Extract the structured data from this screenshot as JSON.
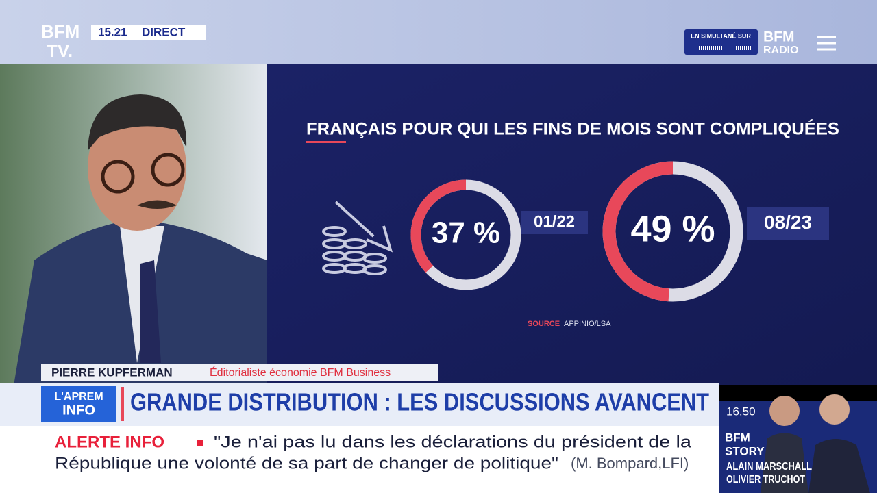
{
  "header": {
    "logo_line1": "BFM",
    "logo_line2": "TV.",
    "time": "15.21",
    "live": "DIRECT",
    "simulcast": "EN SIMULTANÉ SUR",
    "radio_line1": "BFM",
    "radio_line2": "RADIO"
  },
  "chart_data": {
    "type": "donut",
    "title": "FRANÇAIS POUR QUI LES FINS DE MOIS SONT COMPLIQUÉES",
    "categories": [
      "01/22",
      "08/23"
    ],
    "values": [
      37,
      49
    ],
    "value_labels": [
      "37 %",
      "49 %"
    ],
    "color": "#e8485a",
    "track_color": "#dcdce6",
    "source_label": "SOURCE",
    "source": "APPINIO/LSA"
  },
  "lower_third": {
    "name": "PIERRE KUPFERMAN",
    "role": "Éditorialiste économie BFM Business",
    "show_line1": "L'APREM",
    "show_line2": "INFO",
    "headline": "GRANDE DISTRIBUTION : LES DISCUSSIONS AVANCENT"
  },
  "ticker": {
    "label": "ALERTE INFO",
    "line1": "\"Je n'ai pas lu dans les déclarations du président de la",
    "line2": "République une volonté de sa part de changer de politique\"",
    "attribution": "(M. Bompard,LFI)"
  },
  "next_show": {
    "time": "16.50",
    "line1": "BFM",
    "line2": "STORY",
    "host1": "ALAIN MARSCHALL",
    "host2": "OLIVIER TRUCHOT"
  }
}
